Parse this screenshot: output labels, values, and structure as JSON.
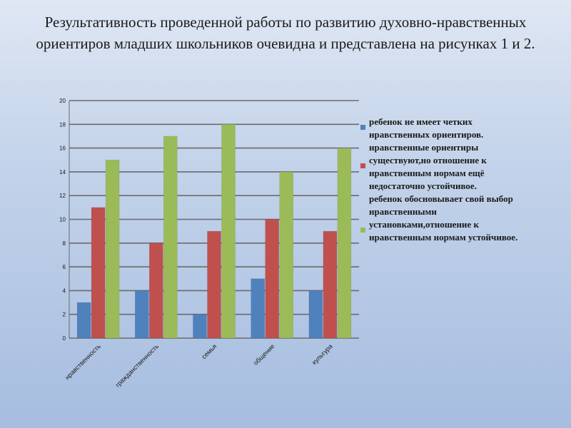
{
  "title": "Результативность проведенной работы по развитию духовно-нравственных ориентиров младших школьников очевидна и представлена на рисунках 1 и 2.",
  "chart_data": {
    "type": "bar",
    "categories": [
      "нравственность",
      "гражданственность",
      "семья",
      "общение",
      "культура"
    ],
    "series": [
      {
        "name": "ребенок не имеет четких нравственных ориентиров.",
        "color": "#4f81bd",
        "values": [
          3,
          4,
          2,
          5,
          4
        ]
      },
      {
        "name": "нравственные ориентиры существуют,но отношение к нравственным нормам ещё недостаточно устойчивое.",
        "color": "#c0504d",
        "values": [
          11,
          8,
          9,
          10,
          9
        ]
      },
      {
        "name": "ребенок обосновывает свой выбор нравственными установками,отношение к нравственным нормам устойчивое.",
        "color": "#9bbb59",
        "values": [
          15,
          17,
          18,
          14,
          16
        ]
      }
    ],
    "ylim": [
      0,
      20
    ],
    "yticks": [
      0,
      2,
      4,
      6,
      8,
      10,
      12,
      14,
      16,
      18,
      20
    ],
    "grid": true,
    "legend_position": "right"
  }
}
